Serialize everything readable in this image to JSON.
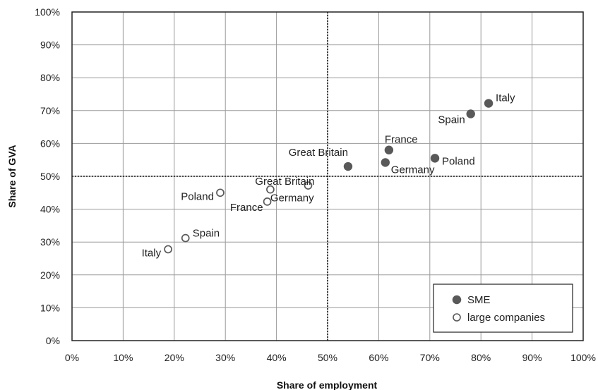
{
  "chart_data": {
    "type": "scatter",
    "xlabel": "Share of employment",
    "ylabel": "Share of GVA",
    "xlim": [
      0,
      100
    ],
    "ylim": [
      0,
      100
    ],
    "x_ticks": [
      "0%",
      "10%",
      "20%",
      "30%",
      "40%",
      "50%",
      "60%",
      "70%",
      "80%",
      "90%",
      "100%"
    ],
    "y_ticks": [
      "0%",
      "10%",
      "20%",
      "30%",
      "40%",
      "50%",
      "60%",
      "70%",
      "80%",
      "90%",
      "100%"
    ],
    "grid": true,
    "reference_lines": {
      "x": 50,
      "y": 50,
      "style": "dotted"
    },
    "legend_position": "bottom-right",
    "series": [
      {
        "name": "SME",
        "marker": "filled",
        "color": "#595959",
        "points": [
          {
            "label": "Italy",
            "x": 81.5,
            "y": 72.2
          },
          {
            "label": "Spain",
            "x": 78.0,
            "y": 69.0
          },
          {
            "label": "France",
            "x": 62.0,
            "y": 58.0
          },
          {
            "label": "Poland",
            "x": 71.0,
            "y": 55.5
          },
          {
            "label": "Great Britain",
            "x": 54.0,
            "y": 53.0
          },
          {
            "label": "Germany",
            "x": 61.3,
            "y": 54.2
          }
        ]
      },
      {
        "name": "large companies",
        "marker": "hollow",
        "color": "#595959",
        "points": [
          {
            "label": "Great Britain",
            "x": 46.2,
            "y": 47.2
          },
          {
            "label": "Germany",
            "x": 38.8,
            "y": 46.0
          },
          {
            "label": "Poland",
            "x": 29.0,
            "y": 45.0
          },
          {
            "label": "France",
            "x": 38.2,
            "y": 42.3
          },
          {
            "label": "Spain",
            "x": 22.2,
            "y": 31.2
          },
          {
            "label": "Italy",
            "x": 18.8,
            "y": 27.8
          }
        ]
      }
    ]
  }
}
